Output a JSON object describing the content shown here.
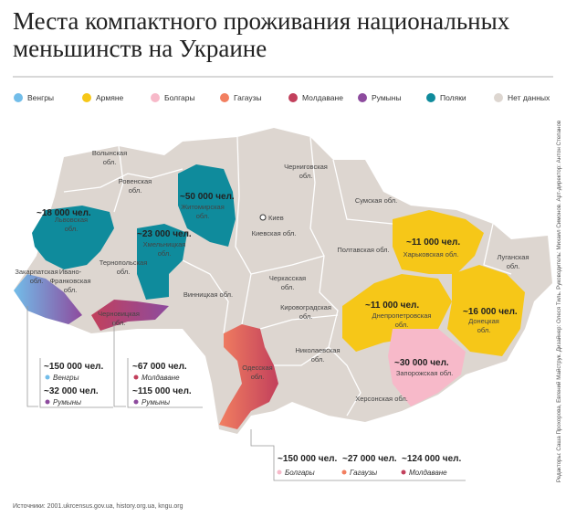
{
  "header": {
    "title": [
      "Места компактного проживания национальных",
      "меньшинств на Украине"
    ]
  },
  "legend": [
    {
      "name": "Венгры",
      "color": "#72bde9"
    },
    {
      "name": "Армяне",
      "color": "#f6c718"
    },
    {
      "name": "Болгары",
      "color": "#f7b9c9"
    },
    {
      "name": "Гагаузы",
      "color": "#f27f60"
    },
    {
      "name": "Молдаване",
      "color": "#c2405c"
    },
    {
      "name": "Румыны",
      "color": "#8d4b9e"
    },
    {
      "name": "Поляки",
      "color": "#0f8b9c"
    },
    {
      "name": "Нет данных",
      "color": "#ddd6d0"
    }
  ],
  "regions": [
    {
      "lines": [
        "Волынская",
        "обл."
      ]
    },
    {
      "lines": [
        "Ровенская",
        "обл."
      ]
    },
    {
      "lines": [
        "Житомирская",
        "обл."
      ]
    },
    {
      "lines": [
        "Львовская",
        "обл."
      ]
    },
    {
      "lines": [
        "Тернопольская",
        "обл."
      ]
    },
    {
      "lines": [
        "Хмельницкая",
        "обл."
      ]
    },
    {
      "lines": [
        "Ивано-",
        "Франковская",
        "обл."
      ]
    },
    {
      "lines": [
        "Закарпатская",
        "обл."
      ]
    },
    {
      "lines": [
        "Черновицкая",
        "обл."
      ]
    },
    {
      "lines": [
        "Винницкая обл."
      ]
    },
    {
      "lines": [
        "Черниговская",
        "обл."
      ]
    },
    {
      "lines": [
        "Киевская обл."
      ]
    },
    {
      "lines": [
        "Сумская обл."
      ]
    },
    {
      "lines": [
        "Полтавская обл."
      ]
    },
    {
      "lines": [
        "Харьковская обл."
      ]
    },
    {
      "lines": [
        "Луганская",
        "обл."
      ]
    },
    {
      "lines": [
        "Черкасская",
        "обл."
      ]
    },
    {
      "lines": [
        "Кировоградская",
        "обл."
      ]
    },
    {
      "lines": [
        "Днепропетровская",
        "обл."
      ]
    },
    {
      "lines": [
        "Донецкая",
        "обл."
      ]
    },
    {
      "lines": [
        "Николаевская",
        "обл."
      ]
    },
    {
      "lines": [
        "Одесская",
        "обл."
      ]
    },
    {
      "lines": [
        "Запорожская обл."
      ]
    },
    {
      "lines": [
        "Херсонская обл."
      ]
    }
  ],
  "capital": "Киев",
  "map_figures": [
    "~18 000 чел.",
    "~50 000 чел.",
    "~23 000 чел.",
    "~11 000 чел.",
    "~11 000 чел.",
    "~16 000 чел.",
    "~30 000 чел."
  ],
  "callouts": [
    {
      "entries": [
        {
          "count": "~150 000 чел.",
          "group": "Венгры",
          "color": "#72bde9"
        },
        {
          "count": "~32 000 чел.",
          "group": "Румыны",
          "color": "#8d4b9e"
        }
      ]
    },
    {
      "entries": [
        {
          "count": "~67 000 чел.",
          "group": "Молдаване",
          "color": "#c2405c"
        },
        {
          "count": "~115 000 чел.",
          "group": "Румыны",
          "color": "#8d4b9e"
        }
      ]
    },
    {
      "entries": [
        {
          "count": "~150 000 чел.",
          "group": "Болгары",
          "color": "#f7b9c9"
        },
        {
          "count": "~27 000 чел.",
          "group": "Гагаузы",
          "color": "#f27f60"
        },
        {
          "count": "~124 000 чел.",
          "group": "Молдаване",
          "color": "#c2405c"
        }
      ]
    }
  ],
  "source": "Источники: 2001.ukrcensus.gov.ua, history.org.ua, kngu.org",
  "credits": "Редакторы: Саша Прохорова, Евгений Майструк. Дизайнер: Олеся Тиль. Руководитель: Михаил Симонов. Арт-директор: Антон Степанов"
}
